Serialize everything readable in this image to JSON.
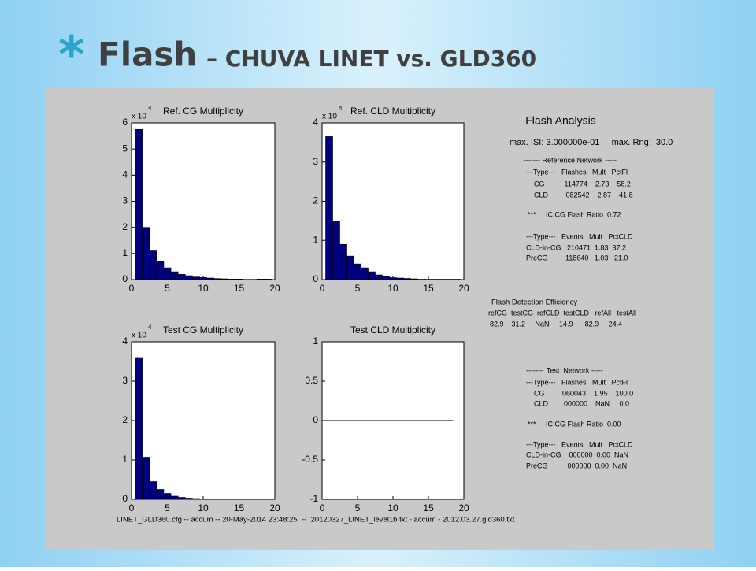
{
  "slide": {
    "bullet": "*",
    "title_main": "Flash",
    "title_rest": "– CHUVA LINET vs. GLD360"
  },
  "chart_data": [
    {
      "type": "histogram",
      "title": "Ref. CG Multiplicity",
      "multiplier": "x 10",
      "multiplier_exp": "4",
      "bins": [
        0.5,
        1.5,
        2.5,
        3.5,
        4.5,
        5.5,
        6.5,
        7.5,
        8.5,
        9.5,
        10.5,
        11.5,
        12.5,
        13.5,
        14.5,
        15.5,
        16.5,
        17.5,
        18.5,
        19.5
      ],
      "values": [
        5.75,
        2.0,
        1.1,
        0.7,
        0.45,
        0.3,
        0.2,
        0.15,
        0.1,
        0.08,
        0.06,
        0.04,
        0.03,
        0.02,
        0.02,
        0.01,
        0.01,
        0.02,
        0.02
      ],
      "color": "#00007f",
      "xlim": [
        0,
        20
      ],
      "xticks": [
        0,
        5,
        10,
        15,
        20
      ],
      "ylim": [
        0,
        6
      ],
      "yticks": [
        0,
        1,
        2,
        3,
        4,
        5,
        6
      ]
    },
    {
      "type": "histogram",
      "title": "Ref. CLD Multiplicity",
      "multiplier": "x 10",
      "multiplier_exp": "4",
      "bins": [
        0.5,
        1.5,
        2.5,
        3.5,
        4.5,
        5.5,
        6.5,
        7.5,
        8.5,
        9.5,
        10.5,
        11.5,
        12.5,
        13.5,
        14.5,
        15.5,
        16.5,
        17.5,
        18.5,
        19.5
      ],
      "values": [
        3.65,
        1.5,
        0.9,
        0.6,
        0.4,
        0.3,
        0.2,
        0.12,
        0.08,
        0.05,
        0.04,
        0.03,
        0.02,
        0.01,
        0.01,
        0.01,
        0.01,
        0.01,
        0.01
      ],
      "color": "#00007f",
      "xlim": [
        0,
        20
      ],
      "xticks": [
        0,
        5,
        10,
        15,
        20
      ],
      "ylim": [
        0,
        4
      ],
      "yticks": [
        0,
        1,
        2,
        3,
        4
      ]
    },
    {
      "type": "histogram",
      "title": "Test CG Multiplicity",
      "multiplier": "x 10",
      "multiplier_exp": "4",
      "bins": [
        0.5,
        1.5,
        2.5,
        3.5,
        4.5,
        5.5,
        6.5,
        7.5,
        8.5,
        9.5,
        10.5,
        11.5,
        12.5,
        13.5,
        14.5,
        15.5,
        16.5,
        17.5,
        18.5,
        19.5
      ],
      "values": [
        3.6,
        1.07,
        0.45,
        0.25,
        0.15,
        0.08,
        0.05,
        0.03,
        0.02,
        0.01,
        0.01,
        0,
        0,
        0,
        0,
        0,
        0,
        0,
        0
      ],
      "color": "#00007f",
      "xlim": [
        0,
        20
      ],
      "xticks": [
        0,
        5,
        10,
        15,
        20
      ],
      "ylim": [
        0,
        4
      ],
      "yticks": [
        0,
        1,
        2,
        3,
        4
      ]
    },
    {
      "type": "line",
      "title": "Test CLD Multiplicity",
      "x": [
        0,
        18.5
      ],
      "values": [
        0,
        0
      ],
      "color": "#000000",
      "xlim": [
        0,
        20
      ],
      "xticks": [
        0,
        5,
        10,
        15,
        20
      ],
      "ylim": [
        -1,
        1
      ],
      "yticks": [
        -1,
        -0.5,
        0,
        0.5,
        1
      ]
    }
  ],
  "analysis": {
    "title": "Flash Analysis",
    "lines": [
      "max. ISI: 3.000000e-01     max. Rng:  30.0",
      "------- Reference Network -----",
      "---Type---   Flashes   Mult   PctFl",
      "CG          114774    2.73    58.2",
      "CLD         082542    2.87    41.8",
      "***     IC:CG Flash Ratio  0.72",
      "---Type---   Events   Mult   PctCLD",
      "CLD-in-CG   210471  1.83  37.2",
      "PreCG         118640   1.03   21.0",
      "Flash Detection Efficiency",
      "refCG  testCG  refCLD  testCLD   refAll   testAll",
      "82.9    31.2     NaN     14.9      82.9     24.4",
      "-------  Test  Network -----",
      "---Type---   Flashes   Mult   PctFl",
      "CG         060043    1.95    100.0",
      "CLD        000000    NaN     0.0",
      "***     IC:CG Flash Ratio  0.00",
      "---Type---   Events   Mult   PctCLD",
      "CLD-in-CG    000000  0.00  NaN",
      "PreCG          000000  0.00  NaN"
    ]
  },
  "footer": "LINET_GLD360.cfg -- accum -- 20-May-2014 23:48:25  --  20120327_LINET_level1b.txt - accum - 2012.03.27.gld360.txt"
}
